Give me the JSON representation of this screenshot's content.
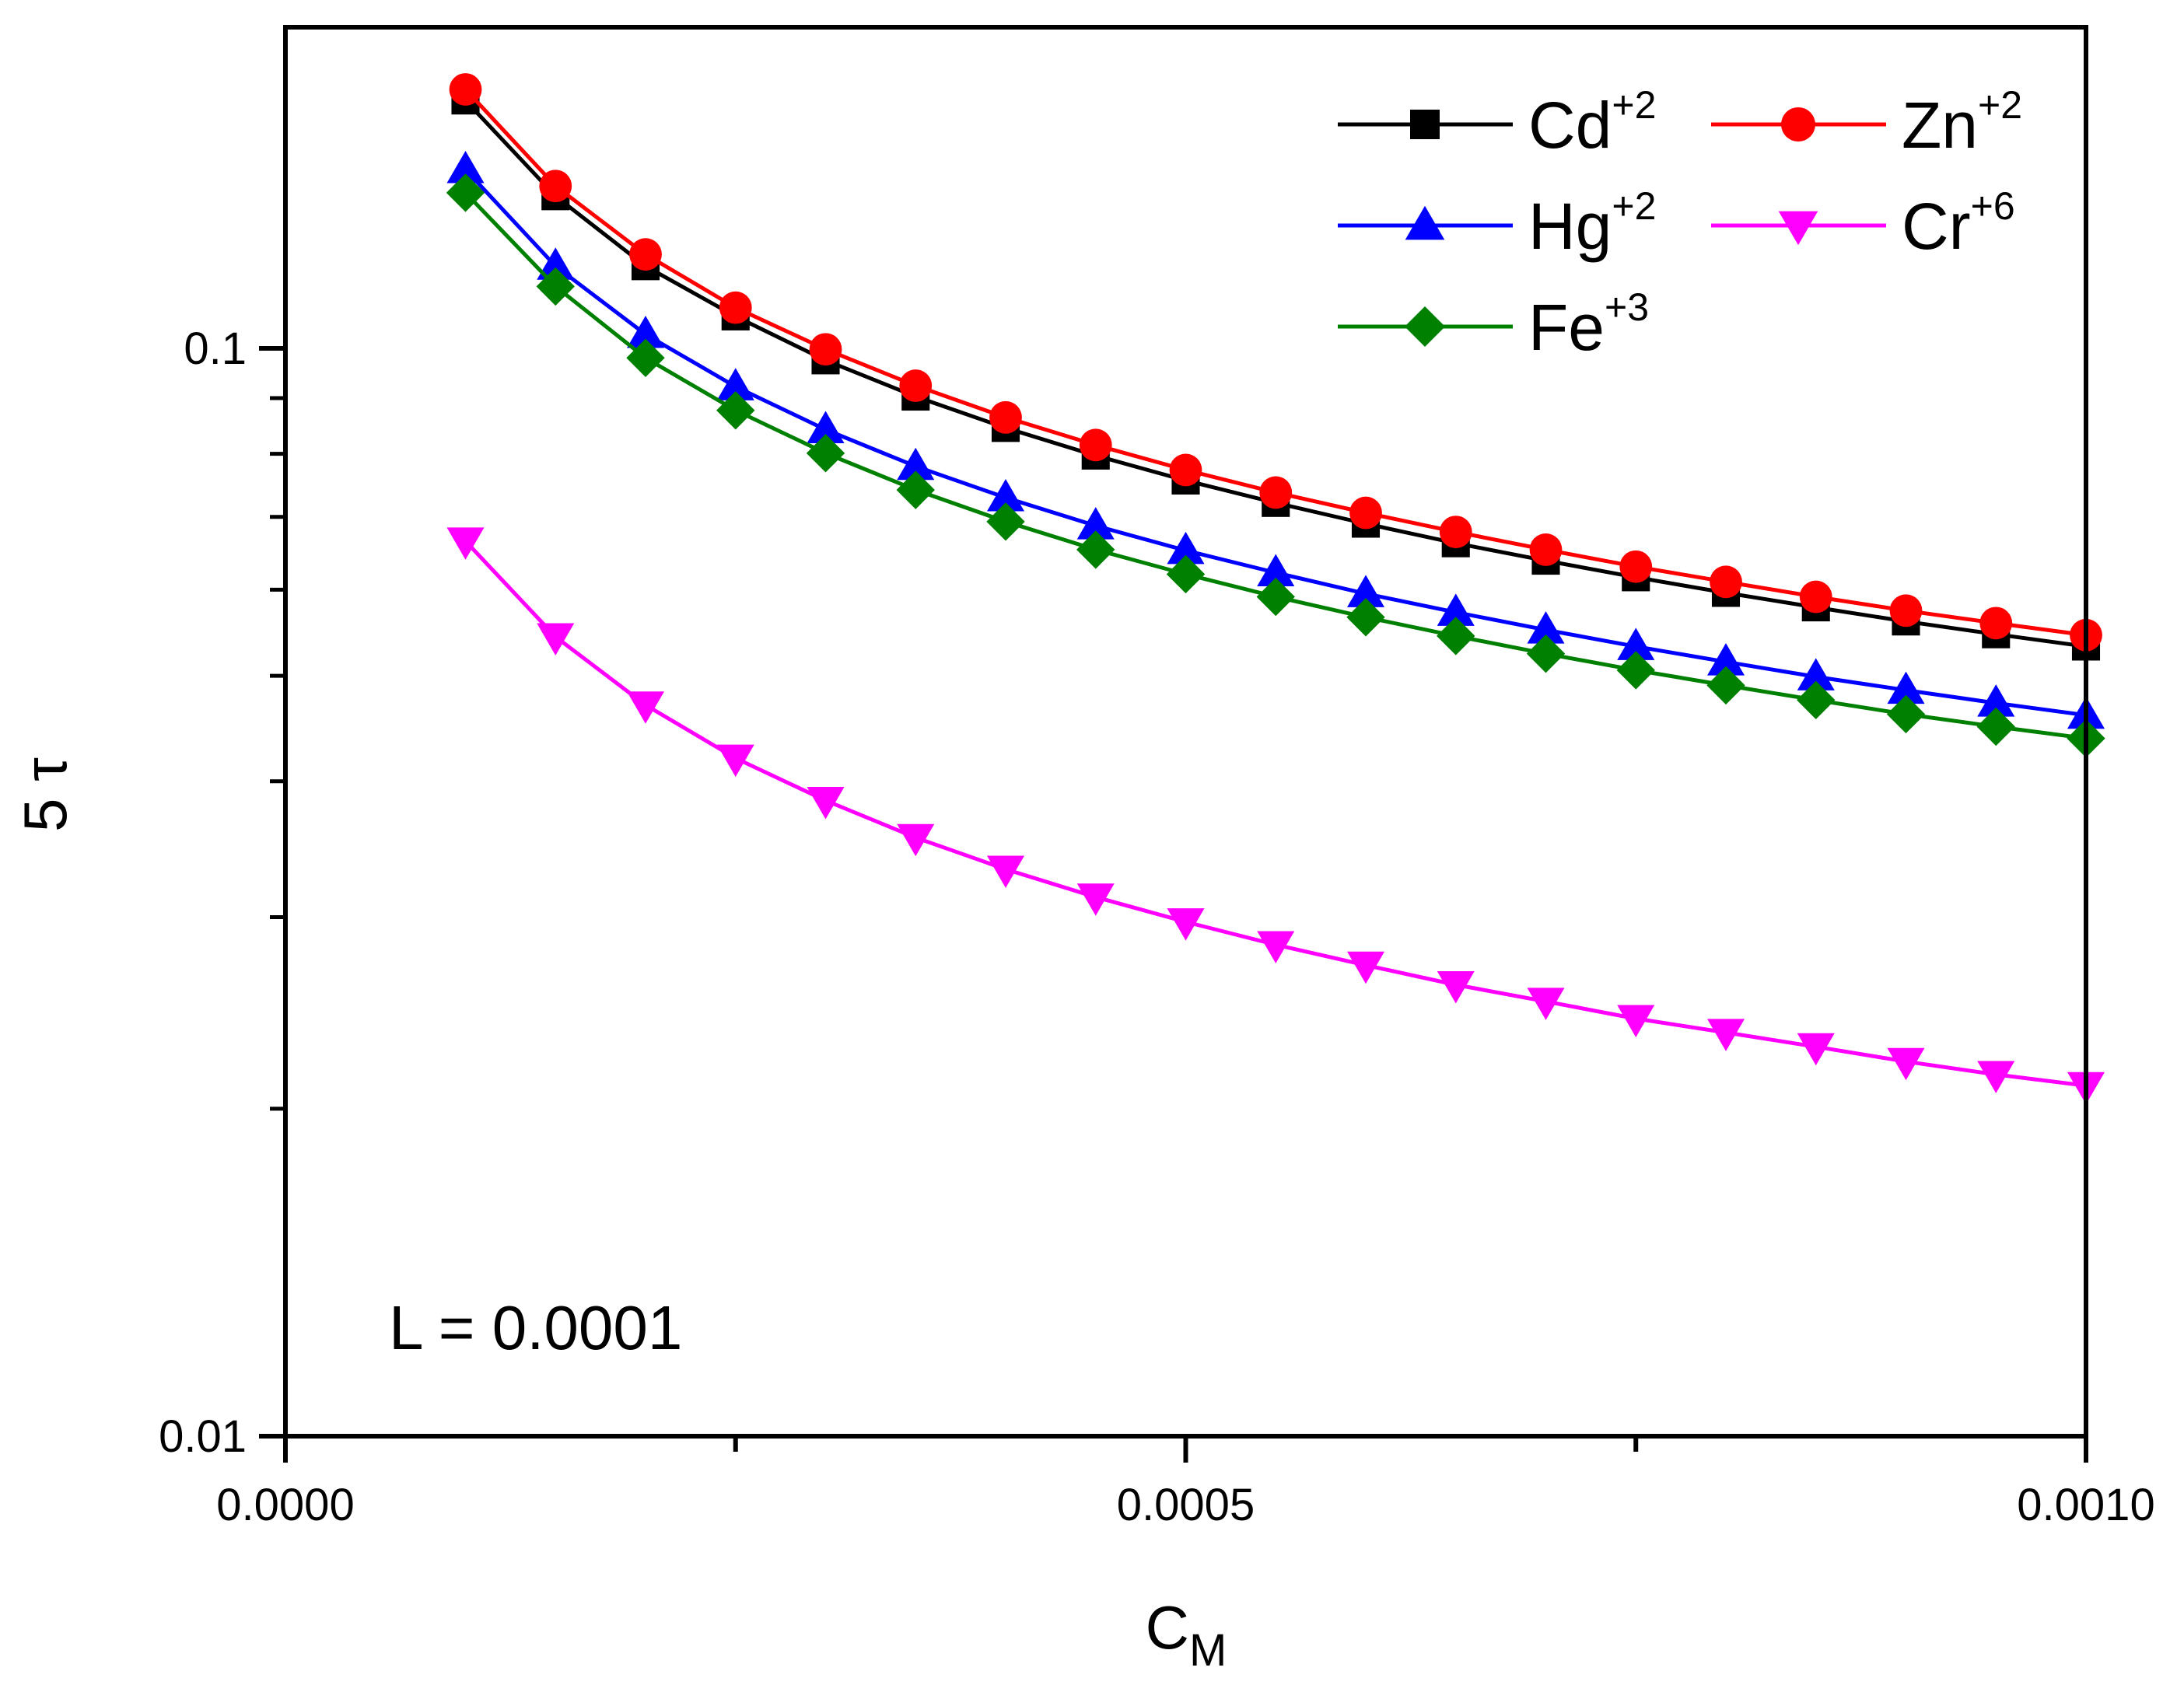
{
  "chart_data": {
    "type": "line",
    "title": "",
    "xlabel": "C",
    "xlabel_subscript": "M",
    "ylabel": "5 τ",
    "xlim": [
      0.0,
      0.001
    ],
    "ylim": [
      0.01,
      0.2
    ],
    "y_scale": "log",
    "grid": false,
    "legend_position": "top-right",
    "x_ticks": [
      {
        "value": 0.0,
        "label": "0.0000"
      },
      {
        "value": 0.0005,
        "label": "0.0005"
      },
      {
        "value": 0.001,
        "label": "0.0010"
      }
    ],
    "y_ticks": [
      {
        "value": 0.01,
        "label": "0.01"
      },
      {
        "value": 0.1,
        "label": "0.1"
      }
    ],
    "annotation": "L = 0.0001",
    "x": [
      0.0001,
      0.00015,
      0.0002,
      0.00025,
      0.0003,
      0.00035,
      0.0004,
      0.00045,
      0.0005,
      0.00055,
      0.0006,
      0.00065,
      0.0007,
      0.00075,
      0.0008,
      0.00085,
      0.0009,
      0.00095,
      0.001
    ],
    "series": [
      {
        "name": "Cd",
        "superscript": "+2",
        "color": "#000000",
        "marker": "square",
        "values": [
          0.169,
          0.138,
          0.119,
          0.107,
          0.0975,
          0.0903,
          0.0845,
          0.0797,
          0.0756,
          0.0721,
          0.069,
          0.0662,
          0.0638,
          0.0616,
          0.0596,
          0.0578,
          0.0561,
          0.0546,
          0.0532
        ]
      },
      {
        "name": "Zn",
        "superscript": "+2",
        "color": "#ff0000",
        "marker": "circle",
        "values": [
          0.173,
          0.141,
          0.122,
          0.109,
          0.0998,
          0.0924,
          0.0864,
          0.0815,
          0.0773,
          0.0737,
          0.0706,
          0.0678,
          0.0653,
          0.063,
          0.061,
          0.0591,
          0.0574,
          0.0559,
          0.0545
        ]
      },
      {
        "name": "Hg",
        "superscript": "+2",
        "color": "#0000ff",
        "marker": "triangle-up",
        "values": [
          0.146,
          0.119,
          0.103,
          0.0922,
          0.0842,
          0.0779,
          0.0729,
          0.0687,
          0.0652,
          0.0622,
          0.0595,
          0.0572,
          0.0551,
          0.0532,
          0.0515,
          0.0499,
          0.0485,
          0.0472,
          0.046
        ]
      },
      {
        "name": "Cr",
        "superscript": "+6",
        "color": "#ff00ff",
        "marker": "triangle-down",
        "values": [
          0.0665,
          0.0543,
          0.047,
          0.042,
          0.0384,
          0.0355,
          0.0332,
          0.0313,
          0.0297,
          0.0283,
          0.0271,
          0.026,
          0.0251,
          0.0242,
          0.0235,
          0.0228,
          0.0221,
          0.0215,
          0.021
        ]
      },
      {
        "name": "Fe",
        "superscript": "+3",
        "color": "#008000",
        "marker": "diamond",
        "values": [
          0.139,
          0.114,
          0.098,
          0.0877,
          0.0801,
          0.0741,
          0.0693,
          0.0653,
          0.062,
          0.0591,
          0.0566,
          0.0544,
          0.0524,
          0.0506,
          0.049,
          0.0475,
          0.0461,
          0.0449,
          0.0438
        ]
      }
    ]
  }
}
